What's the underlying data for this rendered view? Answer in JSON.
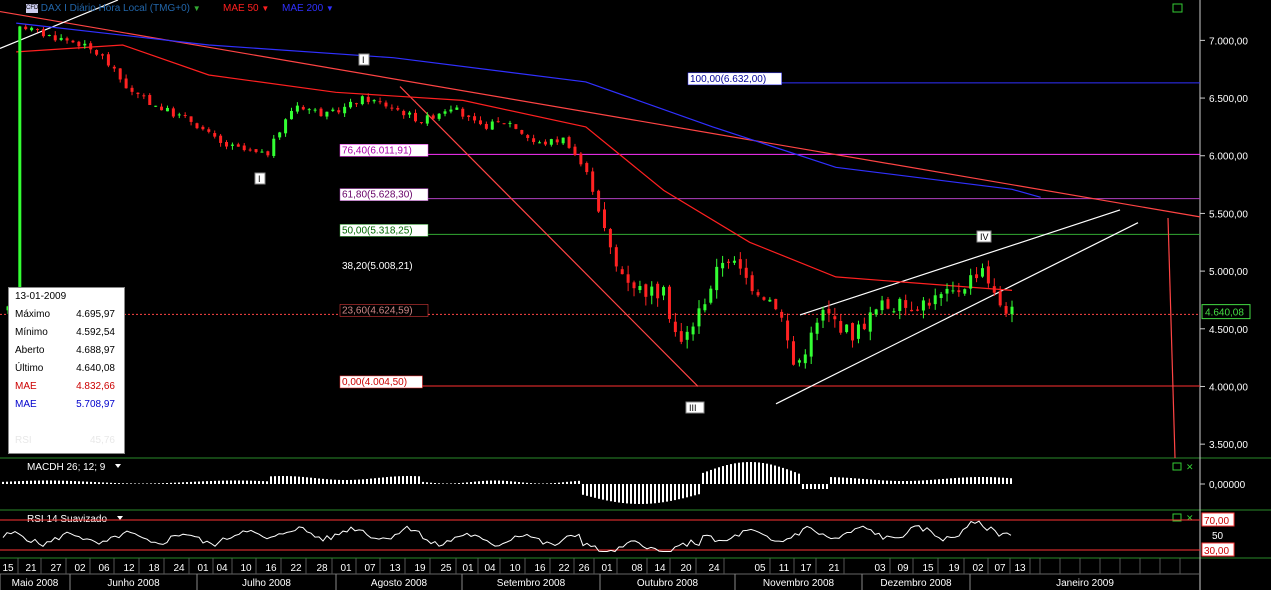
{
  "header": {
    "icon": "cfd-icon",
    "icon_label": "CFD",
    "instrument": "DAX I Diário Hora Local (TMG+0)",
    "ma50_label": "MAE 50",
    "ma200_label": "MAE 200"
  },
  "colors": {
    "background": "#000000",
    "candle_up": "#33ff33",
    "candle_down": "#ff2222",
    "mae50": "#ff2020",
    "mae200": "#3030ff",
    "fib_100": "#3030ff",
    "fib_76": "#ff33ff",
    "fib_61": "#b040c0",
    "fib_50": "#33aa33",
    "fib_0": "#ff3030",
    "price_line": "#ff4444",
    "current_price_box": "#44dd44",
    "panel_border": "#2a8a2a",
    "macd": "#ffffff",
    "rsi": "#ffffff",
    "rsi_band": "#ff3333"
  },
  "info_panel": {
    "date": "13-01-2009",
    "rows": [
      {
        "label": "Máximo",
        "value": "4.695,97",
        "color": "#000000"
      },
      {
        "label": "Mínimo",
        "value": "4.592,54",
        "color": "#000000"
      },
      {
        "label": "Aberto",
        "value": "4.688,97",
        "color": "#000000"
      },
      {
        "label": "Último",
        "value": "4.640,08",
        "color": "#000000"
      },
      {
        "label": "MAE",
        "value": "4.832,66",
        "color": "#cc0000"
      },
      {
        "label": "MAE",
        "value": "5.708,97",
        "color": "#0000cc"
      }
    ],
    "faded_label": "RSI",
    "faded_value": "45,76"
  },
  "price_axis": {
    "ticks": [
      "7.000,00",
      "6.500,00",
      "6.000,00",
      "5.500,00",
      "5.000,00",
      "4.500,00",
      "4.000,00",
      "3.500,00"
    ],
    "current_price": "4.640,08"
  },
  "fibonacci": [
    {
      "label": "100,00(6.632,00)",
      "level": 6632.0
    },
    {
      "label": "76,40(6.011,91)",
      "level": 6011.91
    },
    {
      "label": "61,80(5.628,30)",
      "level": 5628.3
    },
    {
      "label": "50,00(5.318,25)",
      "level": 5318.25
    },
    {
      "label": "38,20(5.008,21)",
      "level": 5008.21
    },
    {
      "label": "23,60(4.624,59)",
      "level": 4624.59
    },
    {
      "label": "0,00(4.004,50)",
      "level": 4004.5
    }
  ],
  "wave_labels": [
    "I",
    "I",
    "III",
    "IV"
  ],
  "macd": {
    "label": "MACDH 26; 12; 9",
    "tick": "0,00000"
  },
  "rsi": {
    "label": "RSI 14 Suavizado",
    "upper": "70,00",
    "mid": "50",
    "lower": "30,00"
  },
  "x_axis": {
    "days": [
      "15",
      "21",
      "27",
      "02",
      "06",
      "12",
      "18",
      "24",
      "01",
      "04",
      "10",
      "16",
      "22",
      "28",
      "01",
      "07",
      "13",
      "19",
      "25",
      "01",
      "04",
      "10",
      "16",
      "22",
      "26",
      "01",
      "08",
      "14",
      "20",
      "24",
      "05",
      "11",
      "17",
      "21",
      "03",
      "09",
      "15",
      "19",
      "02",
      "07",
      "13"
    ],
    "months": [
      "Maio 2008",
      "Junho 2008",
      "Julho 2008",
      "Agosto 2008",
      "Setembro 2008",
      "Outubro 2008",
      "Novembro 2008",
      "Dezembro 2008",
      "Janeiro 2009"
    ]
  },
  "chart_data": [
    {
      "type": "candlestick",
      "title": "DAX I Diário Hora Local (TMG+0)",
      "ylim": [
        3380,
        7350
      ],
      "series": [
        {
          "name": "MAE 50",
          "values_at": [
            {
              "date": "2008-05-15",
              "value": 6900
            },
            {
              "date": "2008-06-10",
              "value": 6960
            },
            {
              "date": "2008-07-01",
              "value": 6700
            },
            {
              "date": "2008-08-01",
              "value": 6550
            },
            {
              "date": "2008-09-01",
              "value": 6480
            },
            {
              "date": "2008-10-01",
              "value": 6250
            },
            {
              "date": "2008-10-20",
              "value": 5700
            },
            {
              "date": "2008-11-10",
              "value": 5250
            },
            {
              "date": "2008-12-01",
              "value": 4950
            },
            {
              "date": "2009-01-13",
              "value": 4832.66
            }
          ]
        },
        {
          "name": "MAE 200",
          "values_at": [
            {
              "date": "2008-05-15",
              "value": 7150
            },
            {
              "date": "2008-07-01",
              "value": 6960
            },
            {
              "date": "2008-08-15",
              "value": 6850
            },
            {
              "date": "2008-10-01",
              "value": 6640
            },
            {
              "date": "2008-11-01",
              "value": 6250
            },
            {
              "date": "2008-12-01",
              "value": 5900
            },
            {
              "date": "2009-01-13",
              "value": 5708.97
            }
          ]
        }
      ],
      "close_path": [
        {
          "date": "2008-05-15",
          "value": 7150
        },
        {
          "date": "2008-05-22",
          "value": 7050
        },
        {
          "date": "2008-05-30",
          "value": 6980
        },
        {
          "date": "2008-06-05",
          "value": 6860
        },
        {
          "date": "2008-06-12",
          "value": 6550
        },
        {
          "date": "2008-06-20",
          "value": 6400
        },
        {
          "date": "2008-06-27",
          "value": 6300
        },
        {
          "date": "2008-07-04",
          "value": 6100
        },
        {
          "date": "2008-07-15",
          "value": 6000
        },
        {
          "date": "2008-07-22",
          "value": 6450
        },
        {
          "date": "2008-07-30",
          "value": 6350
        },
        {
          "date": "2008-08-08",
          "value": 6500
        },
        {
          "date": "2008-08-15",
          "value": 6420
        },
        {
          "date": "2008-08-22",
          "value": 6300
        },
        {
          "date": "2008-08-29",
          "value": 6430
        },
        {
          "date": "2008-09-05",
          "value": 6250
        },
        {
          "date": "2008-09-12",
          "value": 6300
        },
        {
          "date": "2008-09-19",
          "value": 6100
        },
        {
          "date": "2008-09-26",
          "value": 6150
        },
        {
          "date": "2008-10-02",
          "value": 5800
        },
        {
          "date": "2008-10-08",
          "value": 5050
        },
        {
          "date": "2008-10-14",
          "value": 4850
        },
        {
          "date": "2008-10-20",
          "value": 4800
        },
        {
          "date": "2008-10-24",
          "value": 4350
        },
        {
          "date": "2008-10-28",
          "value": 4600
        },
        {
          "date": "2008-11-04",
          "value": 5150
        },
        {
          "date": "2008-11-10",
          "value": 4900
        },
        {
          "date": "2008-11-17",
          "value": 4700
        },
        {
          "date": "2008-11-21",
          "value": 4150
        },
        {
          "date": "2008-11-28",
          "value": 4650
        },
        {
          "date": "2008-12-05",
          "value": 4450
        },
        {
          "date": "2008-12-12",
          "value": 4700
        },
        {
          "date": "2008-12-19",
          "value": 4700
        },
        {
          "date": "2008-12-30",
          "value": 4810
        },
        {
          "date": "2009-01-06",
          "value": 5050
        },
        {
          "date": "2009-01-09",
          "value": 4750
        },
        {
          "date": "2009-01-13",
          "value": 4640.08
        }
      ],
      "last": {
        "date": "2009-01-13",
        "open": 4688.97,
        "high": 4695.97,
        "low": 4592.54,
        "close": 4640.08
      }
    },
    {
      "type": "bar",
      "title": "MACDH 26; 12; 9",
      "ylim": [
        -1,
        1
      ]
    },
    {
      "type": "line",
      "title": "RSI 14 Suavizado",
      "bands": [
        30,
        70
      ],
      "last": 45.76
    }
  ]
}
